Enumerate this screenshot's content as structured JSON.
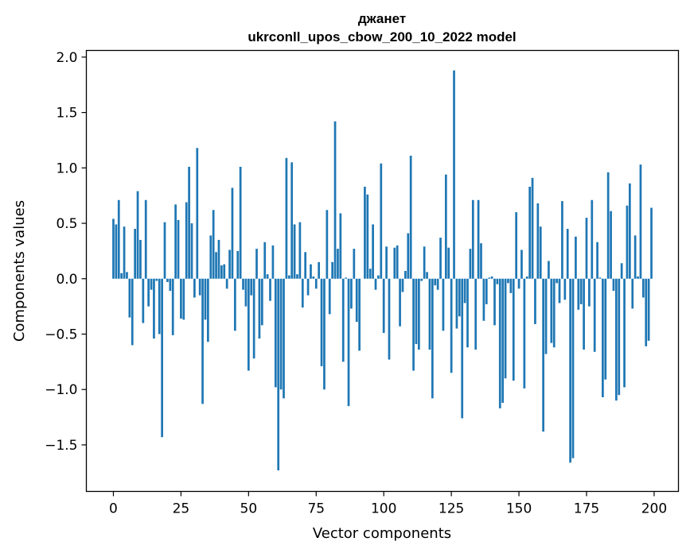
{
  "chart_data": {
    "type": "bar",
    "title": "джанет",
    "subtitle": "ukrconll_upos_cbow_200_10_2022 model",
    "xlabel": "Vector components",
    "ylabel": "Components values",
    "xlim": [
      -10,
      209
    ],
    "ylim": [
      -1.92,
      2.06
    ],
    "xticks": [
      0,
      25,
      50,
      75,
      100,
      125,
      150,
      175,
      200
    ],
    "xtick_labels": [
      "0",
      "25",
      "50",
      "75",
      "100",
      "125",
      "150",
      "175",
      "200"
    ],
    "yticks": [
      2.0,
      1.5,
      1.0,
      0.5,
      0.0,
      -0.5,
      -1.0,
      -1.5
    ],
    "ytick_labels": [
      "2.0",
      "1.5",
      "1.0",
      "0.5",
      "0.0",
      "−0.5",
      "−1.0",
      "−1.5"
    ],
    "grid": false,
    "bar_color": "#1f77b4",
    "x": [
      0,
      1,
      2,
      3,
      4,
      5,
      6,
      7,
      8,
      9,
      10,
      11,
      12,
      13,
      14,
      15,
      16,
      17,
      18,
      19,
      20,
      21,
      22,
      23,
      24,
      25,
      26,
      27,
      28,
      29,
      30,
      31,
      32,
      33,
      34,
      35,
      36,
      37,
      38,
      39,
      40,
      41,
      42,
      43,
      44,
      45,
      46,
      47,
      48,
      49,
      50,
      51,
      52,
      53,
      54,
      55,
      56,
      57,
      58,
      59,
      60,
      61,
      62,
      63,
      64,
      65,
      66,
      67,
      68,
      69,
      70,
      71,
      72,
      73,
      74,
      75,
      76,
      77,
      78,
      79,
      80,
      81,
      82,
      83,
      84,
      85,
      86,
      87,
      88,
      89,
      90,
      91,
      92,
      93,
      94,
      95,
      96,
      97,
      98,
      99,
      100,
      101,
      102,
      103,
      104,
      105,
      106,
      107,
      108,
      109,
      110,
      111,
      112,
      113,
      114,
      115,
      116,
      117,
      118,
      119,
      120,
      121,
      122,
      123,
      124,
      125,
      126,
      127,
      128,
      129,
      130,
      131,
      132,
      133,
      134,
      135,
      136,
      137,
      138,
      139,
      140,
      141,
      142,
      143,
      144,
      145,
      146,
      147,
      148,
      149,
      150,
      151,
      152,
      153,
      154,
      155,
      156,
      157,
      158,
      159,
      160,
      161,
      162,
      163,
      164,
      165,
      166,
      167,
      168,
      169,
      170,
      171,
      172,
      173,
      174,
      175,
      176,
      177,
      178,
      179,
      180,
      181,
      182,
      183,
      184,
      185,
      186,
      187,
      188,
      189,
      190,
      191,
      192,
      193,
      194,
      195,
      196,
      197,
      198,
      199
    ],
    "values": [
      0.54,
      0.49,
      0.71,
      0.05,
      0.47,
      0.06,
      -0.35,
      -0.6,
      0.45,
      0.79,
      0.35,
      -0.4,
      0.71,
      -0.25,
      -0.1,
      -0.54,
      -0.02,
      -0.5,
      -1.43,
      0.51,
      -0.03,
      -0.11,
      -0.51,
      0.67,
      0.53,
      -0.36,
      -0.37,
      0.69,
      1.01,
      0.5,
      -0.17,
      1.18,
      -0.15,
      -1.13,
      -0.37,
      -0.57,
      0.39,
      0.62,
      0.24,
      0.35,
      0.12,
      0.13,
      -0.09,
      0.26,
      0.82,
      -0.47,
      0.25,
      1.01,
      -0.1,
      -0.25,
      -0.83,
      -0.15,
      -0.72,
      0.27,
      -0.54,
      -0.42,
      0.33,
      0.04,
      -0.2,
      0.3,
      -0.98,
      -1.73,
      -1.0,
      -1.08,
      1.09,
      0.03,
      1.05,
      0.49,
      0.04,
      0.51,
      -0.26,
      0.24,
      -0.15,
      0.13,
      0.02,
      -0.09,
      0.15,
      -0.79,
      -1.0,
      0.62,
      -0.32,
      0.15,
      1.42,
      0.27,
      0.59,
      -0.75,
      0.01,
      -1.15,
      -0.27,
      0.27,
      -0.39,
      -0.65,
      0.0,
      0.83,
      0.76,
      0.09,
      0.49,
      -0.1,
      0.03,
      1.04,
      -0.49,
      0.29,
      -0.73,
      0.0,
      0.28,
      0.3,
      -0.43,
      -0.12,
      0.07,
      0.41,
      1.11,
      -0.83,
      -0.59,
      -0.64,
      -0.02,
      0.29,
      0.06,
      -0.64,
      -1.08,
      -0.06,
      -0.1,
      0.37,
      -0.47,
      0.94,
      0.28,
      -0.85,
      1.88,
      -0.45,
      -0.34,
      -1.26,
      -0.22,
      -0.62,
      0.27,
      0.71,
      -0.64,
      0.71,
      0.32,
      -0.38,
      -0.23,
      0.01,
      0.02,
      -0.42,
      -0.05,
      -1.17,
      -1.12,
      -0.9,
      -0.04,
      -0.13,
      -0.92,
      0.6,
      -0.09,
      0.26,
      -0.99,
      0.02,
      0.83,
      0.91,
      -0.41,
      0.68,
      0.47,
      -1.38,
      -0.68,
      0.16,
      -0.58,
      -0.62,
      -0.04,
      -0.22,
      0.7,
      -0.19,
      0.45,
      -1.66,
      -1.62,
      0.38,
      -0.28,
      -0.23,
      -0.64,
      0.55,
      -0.25,
      0.71,
      -0.66,
      0.33,
      0.01,
      -1.07,
      -0.91,
      0.96,
      0.61,
      -0.11,
      -1.1,
      -1.05,
      0.14,
      -0.98,
      0.66,
      0.86,
      -0.27,
      0.39,
      0.02,
      1.03,
      -0.17,
      -0.61,
      -0.56,
      0.64
    ]
  }
}
